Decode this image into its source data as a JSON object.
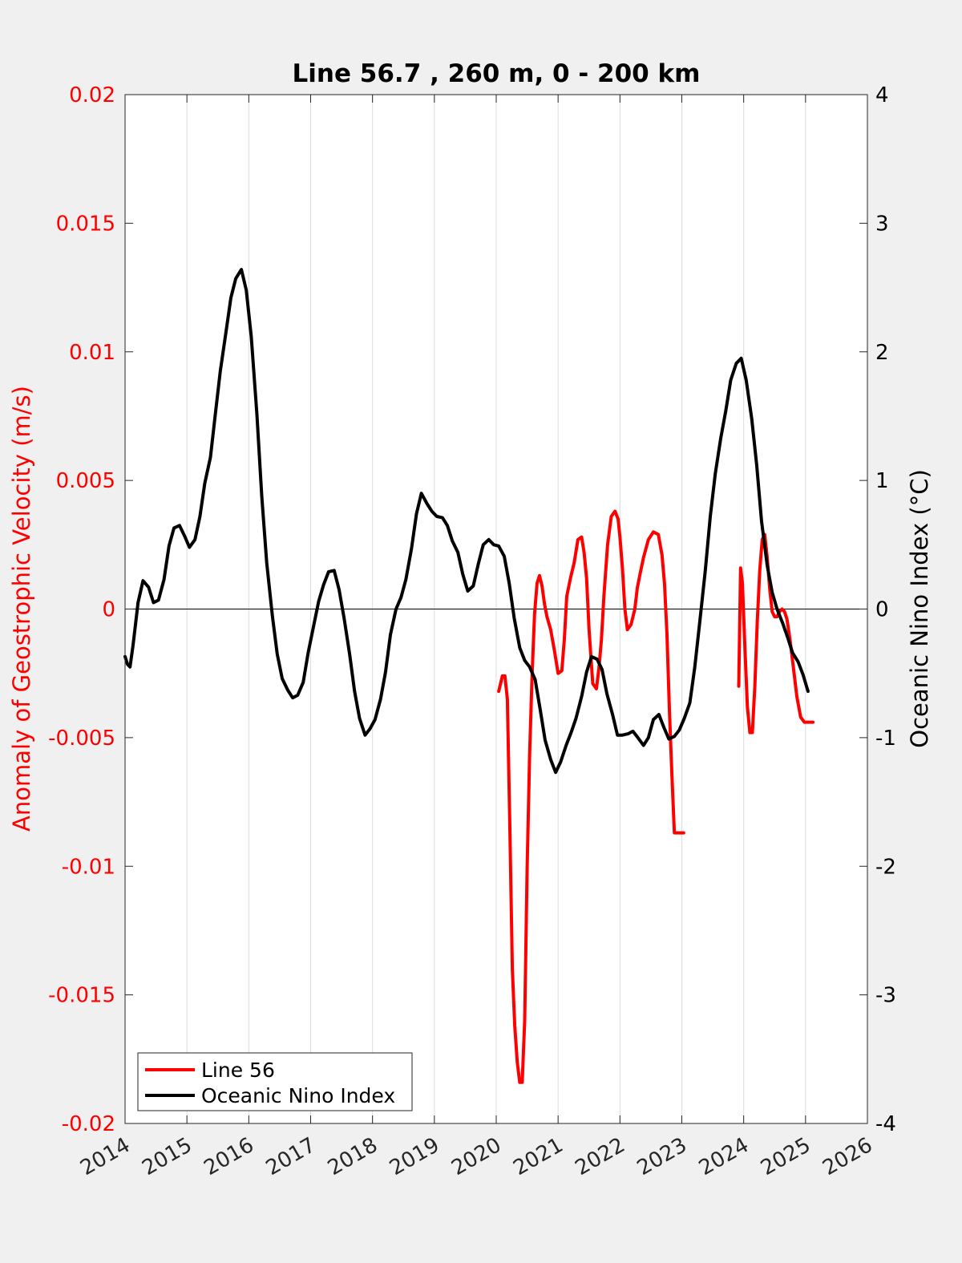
{
  "chart_data": {
    "type": "line",
    "title": "Line 56.7 , 260 m, 0 - 200 km",
    "xlabel": "",
    "ylabel_left": "Anomaly of Geostrophic Velocity (m/s)",
    "ylabel_right": "Oceanic Nino Index (°C)",
    "xlim": [
      2014,
      2026
    ],
    "ylim_left": [
      -0.02,
      0.02
    ],
    "ylim_right": [
      -4,
      4
    ],
    "x_ticks": [
      "2014",
      "2015",
      "2016",
      "2017",
      "2018",
      "2019",
      "2020",
      "2021",
      "2022",
      "2023",
      "2024",
      "2025",
      "2026"
    ],
    "y_ticks_left": [
      "0.02",
      "0.015",
      "0.01",
      "0.005",
      "0",
      "-0.005",
      "-0.01",
      "-0.015",
      "-0.02"
    ],
    "y_ticks_right": [
      "4",
      "3",
      "2",
      "1",
      "0",
      "-1",
      "-2",
      "-3",
      "-4"
    ],
    "grid": "vertical",
    "zero_line": true,
    "legend_position": "bottom-left",
    "colors": {
      "line56": "#ff0000",
      "oni": "#000000",
      "left_axis": "#ff0000",
      "right_axis": "#000000"
    },
    "series": [
      {
        "name": "Line 56",
        "axis": "left",
        "segments": [
          {
            "x": [
              2020.04,
              2020.1,
              2020.14,
              2020.18,
              2020.22,
              2020.26,
              2020.3,
              2020.34,
              2020.38,
              2020.42,
              2020.46,
              2020.5,
              2020.54,
              2020.58,
              2020.62,
              2020.66,
              2020.7,
              2020.74,
              2020.78,
              2020.82,
              2020.88,
              2020.94,
              2021.0,
              2021.06,
              2021.1,
              2021.14,
              2021.2,
              2021.26,
              2021.32,
              2021.38,
              2021.42,
              2021.46,
              2021.5,
              2021.56,
              2021.62,
              2021.66,
              2021.7,
              2021.74,
              2021.8,
              2021.86,
              2021.92,
              2021.97,
              2022.0,
              2022.04,
              2022.08,
              2022.12,
              2022.18,
              2022.24,
              2022.28,
              2022.32,
              2022.38,
              2022.46,
              2022.54,
              2022.62,
              2022.68,
              2022.72,
              2022.76,
              2022.8,
              2022.84,
              2022.88,
              2022.92,
              2022.96,
              2023.0,
              2023.03
            ],
            "y": [
              -0.0032,
              -0.0026,
              -0.0026,
              -0.0035,
              -0.0085,
              -0.014,
              -0.0162,
              -0.0176,
              -0.0184,
              -0.0184,
              -0.016,
              -0.01,
              -0.0056,
              -0.0025,
              -0.0002,
              0.001,
              0.0013,
              0.0009,
              0.0002,
              -0.0003,
              -0.0008,
              -0.0016,
              -0.0025,
              -0.0024,
              -0.0012,
              0.0005,
              0.0012,
              0.0018,
              0.0027,
              0.0028,
              0.0022,
              0.0012,
              -0.0008,
              -0.0029,
              -0.0031,
              -0.0023,
              -0.0012,
              0.0005,
              0.0025,
              0.0036,
              0.0038,
              0.0035,
              0.0028,
              0.0016,
              0.0,
              -0.0008,
              -0.0006,
              0.0,
              0.0008,
              0.0013,
              0.002,
              0.0027,
              0.003,
              0.0029,
              0.0021,
              0.001,
              -0.001,
              -0.004,
              -0.0065,
              -0.0087,
              -0.0087,
              -0.0087,
              -0.0087,
              -0.0087
            ]
          },
          {
            "x": [
              2023.92,
              2023.95,
              2023.98,
              2024.02,
              2024.06,
              2024.1,
              2024.14,
              2024.18,
              2024.22,
              2024.26,
              2024.3,
              2024.34,
              2024.38,
              2024.42,
              2024.46,
              2024.5,
              2024.54,
              2024.58,
              2024.62,
              2024.66,
              2024.7,
              2024.75,
              2024.8,
              2024.86,
              2024.92,
              2024.98,
              2025.04,
              2025.08,
              2025.12
            ],
            "y": [
              -0.003,
              0.0016,
              0.001,
              -0.0015,
              -0.0038,
              -0.0048,
              -0.0048,
              -0.003,
              -0.0005,
              0.0015,
              0.0027,
              0.0029,
              0.002,
              0.0008,
              -0.0001,
              -0.0003,
              -0.0003,
              -0.0001,
              0.0,
              -0.0001,
              -0.0004,
              -0.0012,
              -0.0022,
              -0.0034,
              -0.0042,
              -0.0044,
              -0.0044,
              -0.0044,
              -0.0044
            ]
          }
        ]
      },
      {
        "name": "Oceanic Nino Index",
        "axis": "right",
        "segments": [
          {
            "x": [
              2014.0,
              2014.04,
              2014.08,
              2014.13,
              2014.21,
              2014.29,
              2014.38,
              2014.46,
              2014.54,
              2014.63,
              2014.71,
              2014.79,
              2014.88,
              2014.96,
              2015.04,
              2015.13,
              2015.21,
              2015.29,
              2015.38,
              2015.46,
              2015.54,
              2015.63,
              2015.71,
              2015.79,
              2015.88,
              2015.96,
              2016.04,
              2016.13,
              2016.21,
              2016.29,
              2016.38,
              2016.46,
              2016.54,
              2016.63,
              2016.71,
              2016.79,
              2016.88,
              2016.96,
              2017.04,
              2017.13,
              2017.21,
              2017.29,
              2017.38,
              2017.46,
              2017.54,
              2017.63,
              2017.71,
              2017.79,
              2017.88,
              2017.96,
              2018.04,
              2018.13,
              2018.21,
              2018.29,
              2018.38,
              2018.46,
              2018.54,
              2018.63,
              2018.71,
              2018.79,
              2018.88,
              2018.96,
              2019.04,
              2019.13,
              2019.21,
              2019.29,
              2019.38,
              2019.46,
              2019.54,
              2019.63,
              2019.71,
              2019.79,
              2019.88,
              2019.96,
              2020.04,
              2020.13,
              2020.21,
              2020.29,
              2020.38,
              2020.46,
              2020.54,
              2020.63,
              2020.71,
              2020.79,
              2020.88,
              2020.96,
              2021.04,
              2021.13,
              2021.21,
              2021.29,
              2021.38,
              2021.46,
              2021.54,
              2021.63,
              2021.71,
              2021.79,
              2021.88,
              2021.96,
              2022.04,
              2022.13,
              2022.21,
              2022.29,
              2022.38,
              2022.46,
              2022.54,
              2022.63,
              2022.71,
              2022.79,
              2022.88,
              2022.96,
              2023.04,
              2023.13,
              2023.21,
              2023.29,
              2023.38,
              2023.46,
              2023.54,
              2023.63,
              2023.71,
              2023.79,
              2023.88,
              2023.96,
              2024.04,
              2024.13,
              2024.21,
              2024.29,
              2024.38,
              2024.46,
              2024.54,
              2024.63,
              2024.71,
              2024.79,
              2024.88,
              2024.96,
              2025.04
            ],
            "y": [
              -0.37,
              -0.43,
              -0.45,
              -0.28,
              0.05,
              0.22,
              0.17,
              0.05,
              0.07,
              0.23,
              0.49,
              0.63,
              0.65,
              0.57,
              0.48,
              0.54,
              0.72,
              0.98,
              1.18,
              1.52,
              1.85,
              2.15,
              2.42,
              2.57,
              2.64,
              2.48,
              2.12,
              1.52,
              0.88,
              0.36,
              -0.05,
              -0.35,
              -0.54,
              -0.63,
              -0.69,
              -0.67,
              -0.57,
              -0.34,
              -0.15,
              0.06,
              0.19,
              0.29,
              0.3,
              0.15,
              -0.07,
              -0.35,
              -0.64,
              -0.85,
              -0.98,
              -0.93,
              -0.86,
              -0.7,
              -0.49,
              -0.2,
              0.0,
              0.09,
              0.23,
              0.47,
              0.74,
              0.9,
              0.82,
              0.76,
              0.72,
              0.71,
              0.65,
              0.53,
              0.44,
              0.27,
              0.14,
              0.18,
              0.35,
              0.5,
              0.54,
              0.5,
              0.49,
              0.41,
              0.2,
              -0.07,
              -0.3,
              -0.4,
              -0.45,
              -0.55,
              -0.78,
              -1.02,
              -1.17,
              -1.27,
              -1.19,
              -1.06,
              -0.96,
              -0.85,
              -0.68,
              -0.49,
              -0.37,
              -0.39,
              -0.47,
              -0.66,
              -0.82,
              -0.98,
              -0.98,
              -0.97,
              -0.95,
              -1.0,
              -1.06,
              -1.0,
              -0.86,
              -0.82,
              -0.92,
              -1.01,
              -0.99,
              -0.94,
              -0.85,
              -0.73,
              -0.45,
              -0.1,
              0.3,
              0.72,
              1.05,
              1.33,
              1.54,
              1.78,
              1.91,
              1.95,
              1.78,
              1.48,
              1.12,
              0.68,
              0.34,
              0.13,
              0.0,
              -0.11,
              -0.22,
              -0.34,
              -0.41,
              -0.51,
              -0.64
            ]
          }
        ]
      }
    ]
  }
}
